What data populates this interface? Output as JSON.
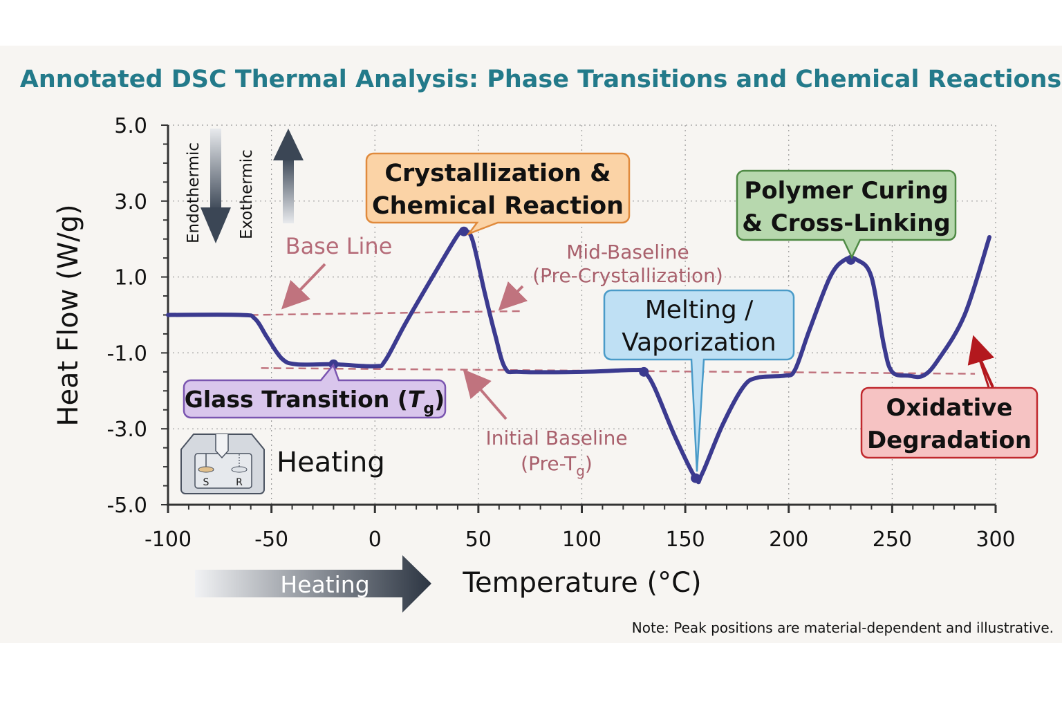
{
  "chart_data": {
    "type": "line",
    "title": "Annotated DSC Thermal Analysis: Phase Transitions and Chemical Reactions",
    "xlabel": "Temperature (°C)",
    "ylabel": "Heat Flow (W/g)",
    "xlim": [
      -100,
      300
    ],
    "ylim": [
      -5,
      5
    ],
    "xticks": [
      -100,
      -50,
      0,
      50,
      100,
      150,
      200,
      250,
      300
    ],
    "xtick_labels": [
      "-100",
      "-50",
      "0",
      "50",
      "100",
      "150",
      "200",
      "250",
      "300"
    ],
    "yticks": [
      5,
      3,
      1,
      -1,
      -3,
      -5
    ],
    "ytick_labels": [
      "5.0",
      "3.0",
      "1.0",
      "-1.0",
      "-3.0",
      "-5.0"
    ],
    "grid": true,
    "series": [
      {
        "name": "DSC curve",
        "color": "#3b3a8f",
        "x": [
          -100,
          -65,
          -58,
          -52,
          -45,
          -38,
          -20,
          0,
          5,
          15,
          30,
          40,
          43,
          47,
          53,
          58,
          63,
          70,
          100,
          125,
          130,
          135,
          145,
          155,
          158,
          168,
          178,
          185,
          198,
          203,
          210,
          220,
          227,
          233,
          240,
          246,
          250,
          258,
          265,
          272,
          285,
          297
        ],
        "y": [
          0,
          0,
          -0.1,
          -0.6,
          -1.15,
          -1.3,
          -1.3,
          -1.35,
          -1.2,
          -0.2,
          1.2,
          2.1,
          2.2,
          2.0,
          0.6,
          -0.5,
          -1.4,
          -1.5,
          -1.5,
          -1.45,
          -1.5,
          -1.9,
          -3.2,
          -4.3,
          -4.2,
          -2.9,
          -1.9,
          -1.65,
          -1.6,
          -1.45,
          -0.4,
          1.0,
          1.45,
          1.45,
          1.0,
          -0.8,
          -1.5,
          -1.6,
          -1.6,
          -1.2,
          0.0,
          2.05
        ]
      }
    ],
    "markers": [
      {
        "x": -20,
        "y": -1.3
      },
      {
        "x": 43,
        "y": 2.2
      },
      {
        "x": 130,
        "y": -1.5
      },
      {
        "x": 155,
        "y": -4.3
      },
      {
        "x": 230,
        "y": 1.45
      }
    ],
    "baselines": [
      {
        "x": [
          -60,
          70
        ],
        "y": [
          0.0,
          0.1
        ]
      },
      {
        "x": [
          -55,
          290
        ],
        "y": [
          -1.4,
          -1.55
        ]
      }
    ],
    "annotations": {
      "crystallization": [
        "Crystallization &",
        "Chemical Reaction"
      ],
      "curing": [
        "Polymer Curing",
        "& Cross-Linking"
      ],
      "melting": [
        "Melting /",
        "Vaporization"
      ],
      "oxidative": [
        "Oxidative",
        "Degradation"
      ],
      "glass": "Glass Transition (",
      "glass_T": "T",
      "glass_sub": "g",
      "glass_close": ")",
      "base_line": "Base Line",
      "mid_baseline": [
        "Mid-Baseline",
        "(Pre-Crystallization)"
      ],
      "initial_baseline": "Initial Baseline",
      "initial_pre": "(Pre-T",
      "initial_sub": "g",
      "initial_close": ")",
      "endothermic": "Endothermic",
      "exothermic": "Exothermic",
      "heating_icon_label": "Heating",
      "heating_arrow_label": "Heating",
      "sample": "S",
      "reference": "R",
      "note": "Note: Peak positions are material-dependent and illustrative."
    },
    "colors": {
      "title": "#237a8a",
      "baseline": "#c0737e",
      "crystallization_fill": "#fbd3a6",
      "crystallization_stroke": "#e08a3c",
      "curing_fill": "#b7d8ae",
      "curing_stroke": "#4f8a45",
      "melting_fill": "#bfe0f4",
      "melting_stroke": "#4a9bc8",
      "glass_fill": "#d9c6ec",
      "glass_stroke": "#7a55b0",
      "oxidative_fill": "#f6c3c3",
      "oxidative_stroke": "#c0282d"
    }
  }
}
